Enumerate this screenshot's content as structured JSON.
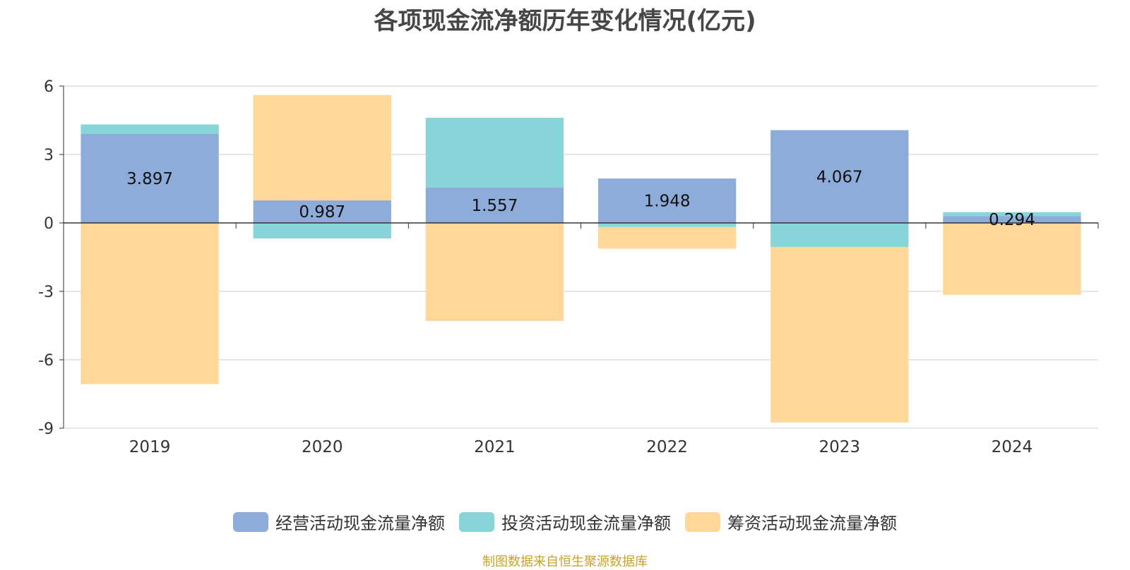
{
  "chart_data": {
    "type": "bar",
    "stacked": true,
    "title": "各项现金流净额历年变化情况(亿元)",
    "categories": [
      "2019",
      "2020",
      "2021",
      "2022",
      "2023",
      "2024"
    ],
    "series": [
      {
        "name": "经营活动现金流量净额",
        "color": "#8EACDA",
        "values": [
          3.897,
          0.987,
          1.557,
          1.948,
          4.067,
          0.294
        ]
      },
      {
        "name": "投资活动现金流量净额",
        "color": "#87D5D8",
        "values": [
          0.42,
          -0.68,
          3.05,
          -0.18,
          -1.05,
          0.18
        ]
      },
      {
        "name": "筹资活动现金流量净额",
        "color": "#FFD899",
        "values": [
          -7.07,
          4.62,
          -4.3,
          -0.95,
          -7.7,
          -3.15
        ]
      }
    ],
    "data_labels": [
      "3.897",
      "0.987",
      "1.557",
      "1.948",
      "4.067",
      "0.294"
    ],
    "y_ticks": [
      "6",
      "3",
      "0",
      "-3",
      "-6",
      "-9"
    ],
    "ylim": [
      -9,
      6
    ],
    "grid": true,
    "legend_position": "bottom"
  },
  "source_note": "制图数据来自恒生聚源数据库"
}
